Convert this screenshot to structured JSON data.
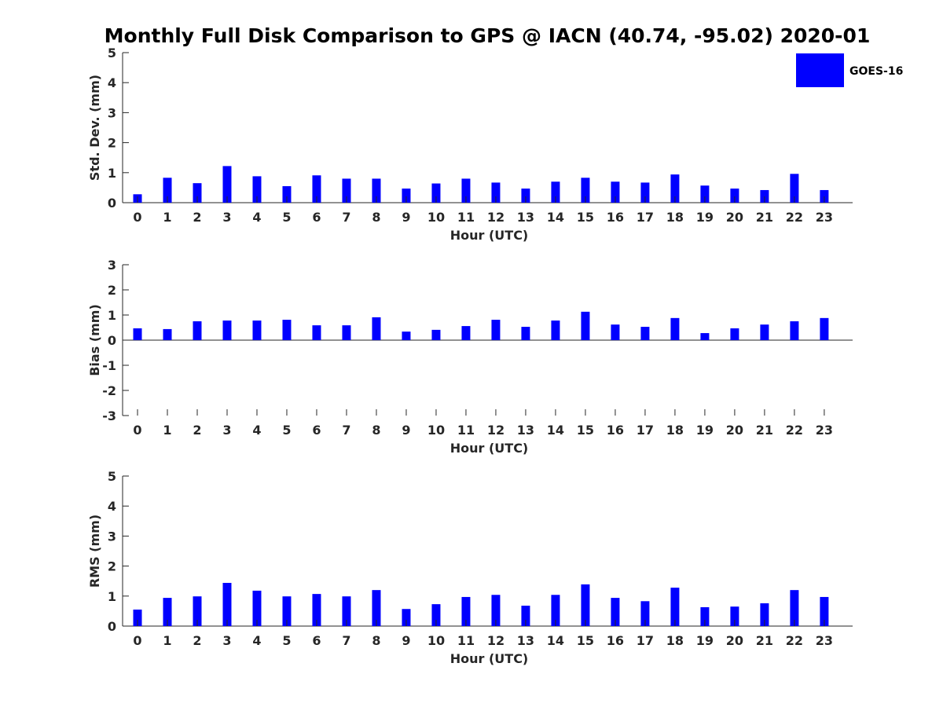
{
  "title": "Monthly Full Disk Comparison to GPS @ IACN (40.74, -95.02) 2020-01",
  "legend": {
    "label": "GOES-16",
    "color": "#0000ff"
  },
  "chart_data": [
    {
      "type": "bar",
      "id": "std",
      "series_name": "GOES-16",
      "color": "#0000ff",
      "xlabel": "Hour (UTC)",
      "ylabel": "Std. Dev. (mm)",
      "ylim": [
        0,
        5
      ],
      "yticks": [
        0,
        1,
        2,
        3,
        4,
        5
      ],
      "categories": [
        "0",
        "1",
        "2",
        "3",
        "4",
        "5",
        "6",
        "7",
        "8",
        "9",
        "10",
        "11",
        "12",
        "13",
        "14",
        "15",
        "16",
        "17",
        "18",
        "19",
        "20",
        "21",
        "22",
        "23"
      ],
      "values": [
        0.28,
        0.83,
        0.65,
        1.22,
        0.88,
        0.55,
        0.91,
        0.8,
        0.8,
        0.47,
        0.64,
        0.8,
        0.67,
        0.47,
        0.7,
        0.83,
        0.7,
        0.67,
        0.94,
        0.57,
        0.47,
        0.42,
        0.96,
        0.42
      ]
    },
    {
      "type": "bar",
      "id": "bias",
      "series_name": "GOES-16",
      "color": "#0000ff",
      "xlabel": "Hour (UTC)",
      "ylabel": "Bias (mm)",
      "ylim": [
        -3,
        3
      ],
      "yticks": [
        -3,
        -2,
        -1,
        0,
        1,
        2,
        3
      ],
      "zero_line": true,
      "categories": [
        "0",
        "1",
        "2",
        "3",
        "4",
        "5",
        "6",
        "7",
        "8",
        "9",
        "10",
        "11",
        "12",
        "13",
        "14",
        "15",
        "16",
        "17",
        "18",
        "19",
        "20",
        "21",
        "22",
        "23"
      ],
      "values": [
        0.47,
        0.44,
        0.75,
        0.78,
        0.78,
        0.81,
        0.59,
        0.59,
        0.91,
        0.34,
        0.41,
        0.56,
        0.81,
        0.53,
        0.78,
        1.13,
        0.62,
        0.53,
        0.88,
        0.28,
        0.47,
        0.62,
        0.75,
        0.88
      ]
    },
    {
      "type": "bar",
      "id": "rms",
      "series_name": "GOES-16",
      "color": "#0000ff",
      "xlabel": "Hour (UTC)",
      "ylabel": "RMS (mm)",
      "ylim": [
        0,
        5
      ],
      "yticks": [
        0,
        1,
        2,
        3,
        4,
        5
      ],
      "categories": [
        "0",
        "1",
        "2",
        "3",
        "4",
        "5",
        "6",
        "7",
        "8",
        "9",
        "10",
        "11",
        "12",
        "13",
        "14",
        "15",
        "16",
        "17",
        "18",
        "19",
        "20",
        "21",
        "22",
        "23"
      ],
      "values": [
        0.55,
        0.94,
        0.99,
        1.44,
        1.18,
        0.99,
        1.07,
        0.99,
        1.2,
        0.57,
        0.73,
        0.97,
        1.04,
        0.68,
        1.04,
        1.39,
        0.94,
        0.83,
        1.28,
        0.63,
        0.65,
        0.76,
        1.2,
        0.97
      ]
    }
  ]
}
